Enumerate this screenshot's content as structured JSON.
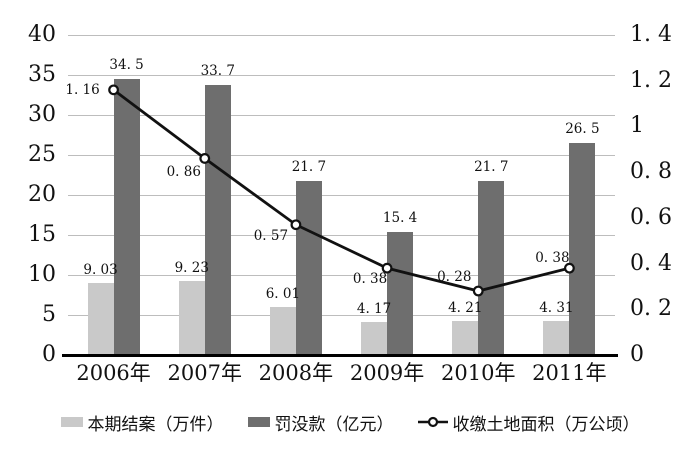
{
  "chart_data": {
    "type": "combo",
    "categories": [
      "2006年",
      "2007年",
      "2008年",
      "2009年",
      "2010年",
      "2011年"
    ],
    "series": [
      {
        "key": "closed-cases",
        "name": "本期结案（万件）",
        "chart": "bar",
        "axis": "left",
        "color": "#c9c9c9",
        "values": [
          9.03,
          9.23,
          6.01,
          4.17,
          4.21,
          4.31
        ],
        "labels": [
          "9. 03",
          "9. 23",
          "6. 01",
          "4. 17",
          "4. 21",
          "4. 31"
        ]
      },
      {
        "key": "fines",
        "name": "罚没款（亿元）",
        "chart": "bar",
        "axis": "left",
        "color": "#6e6e6e",
        "values": [
          34.5,
          33.7,
          21.7,
          15.4,
          21.7,
          26.5
        ],
        "labels": [
          "34. 5",
          "33. 7",
          "21. 7",
          "15. 4",
          "21. 7",
          "26. 5"
        ]
      },
      {
        "key": "confiscated-land",
        "name": "收缴土地面积（万公顷）",
        "chart": "line",
        "axis": "right",
        "color": "#111111",
        "marker": "open-circle",
        "values": [
          1.16,
          0.86,
          0.57,
          0.38,
          0.28,
          0.38
        ],
        "labels": [
          "1. 16",
          "0. 86",
          "0. 57",
          "0. 38",
          "0. 28",
          "0. 38"
        ],
        "label_offsets": [
          [
            -31,
            0
          ],
          [
            -21,
            14
          ],
          [
            -25,
            11
          ],
          [
            -17,
            11
          ],
          [
            -24,
            -14
          ],
          [
            -17,
            -10
          ]
        ]
      }
    ],
    "left_axis": {
      "min": 0,
      "max": 40,
      "step": 5,
      "ticks": [
        0,
        5,
        10,
        15,
        20,
        25,
        30,
        35,
        40
      ],
      "tick_labels": [
        "0",
        "5",
        "10",
        "15",
        "20",
        "25",
        "30",
        "35",
        "40"
      ]
    },
    "right_axis": {
      "min": 0,
      "max": 1.4,
      "step": 0.2,
      "ticks": [
        0,
        0.2,
        0.4,
        0.6,
        0.8,
        1,
        1.2,
        1.4
      ],
      "tick_labels": [
        "0",
        "0. 2",
        "0. 4",
        "0. 6",
        "0. 8",
        "1",
        "1. 2",
        "1. 4"
      ]
    },
    "grid": "horizontal",
    "legend_position": "bottom",
    "colors": {
      "background": "#ffffff",
      "gridline": "#bdbdbd",
      "axis_line": "#000000",
      "text": "#111111",
      "marker_fill": "#ffffff"
    }
  }
}
